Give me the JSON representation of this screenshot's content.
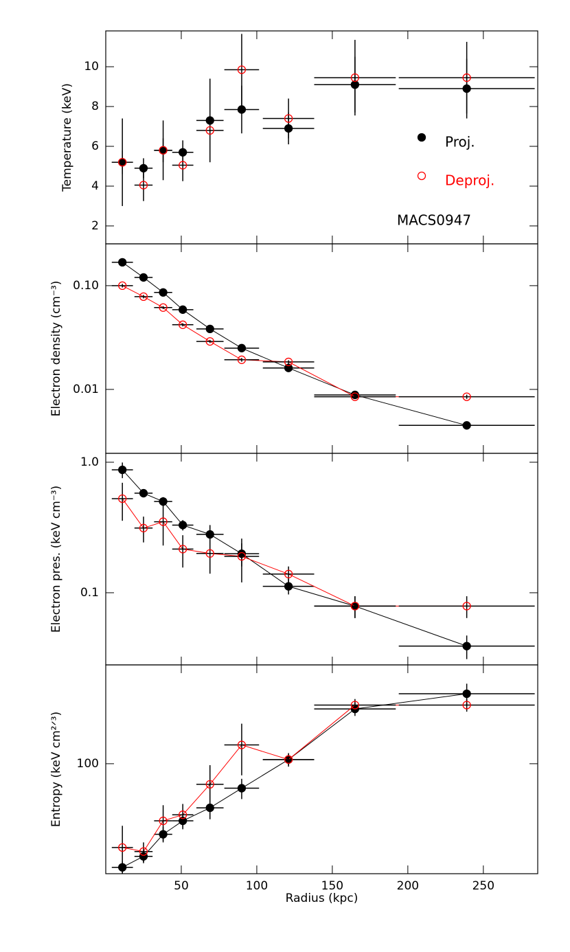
{
  "chart_data": [
    {
      "type": "scatter",
      "ylabel": "Temperature (keV)",
      "annotation": "MACS0947",
      "log": false,
      "connect": false,
      "x": [
        11,
        25,
        38,
        51,
        69,
        90,
        121,
        165,
        239
      ],
      "xerr": [
        7,
        6,
        6,
        7,
        9,
        11.5,
        17,
        27,
        45
      ],
      "xlim": [
        0,
        286
      ],
      "xticks": [
        50,
        100,
        150,
        200,
        250
      ],
      "ylim": [
        1.1,
        11.8
      ],
      "yticks": [
        2,
        4,
        6,
        8,
        10
      ],
      "series": [
        {
          "name": "Proj.",
          "color": "#000000",
          "marker": "filled",
          "values": [
            5.2,
            4.9,
            5.8,
            5.7,
            7.3,
            7.85,
            6.9,
            9.1,
            8.9
          ],
          "errors": [
            0.6,
            0.5,
            0.6,
            0.6,
            2.1,
            1.2,
            0.8,
            1.4,
            1.5
          ]
        },
        {
          "name": "Deproj.",
          "color": "#ff0000",
          "marker": "open",
          "values": [
            5.2,
            4.05,
            5.8,
            5.05,
            6.8,
            9.85,
            7.4,
            9.45,
            9.45
          ],
          "errors": [
            2.2,
            0.8,
            1.5,
            0.8,
            1.4,
            1.8,
            1.0,
            1.9,
            1.8
          ]
        }
      ]
    },
    {
      "type": "scatter",
      "ylabel": "Electron density (cm⁻³)",
      "log": true,
      "connect": true,
      "x": [
        11,
        25,
        38,
        51,
        69,
        90,
        121,
        165,
        239
      ],
      "xerr": [
        7,
        6,
        6,
        7,
        9,
        11.5,
        17,
        27,
        45
      ],
      "xlim": [
        0,
        286
      ],
      "xticks": [
        50,
        100,
        150,
        200,
        250
      ],
      "ylim": [
        0.00242,
        0.253
      ],
      "yticks": [
        {
          "value": 0.1,
          "label": "0.10"
        },
        0.01
      ],
      "series": [
        {
          "color": "#000000",
          "marker": "filled",
          "values": [
            0.168,
            0.12,
            0.086,
            0.0587,
            0.0383,
            0.025,
            0.0161,
            0.00885,
            0.0045
          ],
          "errors": [
            0.005,
            0.004,
            0.003,
            0.002,
            0.0015,
            0.001,
            0.0007,
            0.0004,
            0.0003
          ]
        },
        {
          "color": "#ff0000",
          "marker": "open",
          "values": [
            0.1,
            0.0784,
            0.0615,
            0.042,
            0.029,
            0.0193,
            0.0184,
            0.0085,
            0.0085
          ],
          "errors": [
            0.004,
            0.003,
            0.002,
            0.0015,
            0.001,
            0.0008,
            0.0007,
            0.0004,
            0.0004
          ]
        }
      ]
    },
    {
      "type": "scatter",
      "ylabel": "Electron pres. (keV cm⁻³)",
      "log": true,
      "connect": true,
      "x": [
        11,
        25,
        38,
        51,
        69,
        90,
        121,
        165,
        239
      ],
      "xerr": [
        7,
        6,
        6,
        7,
        9,
        11.5,
        17,
        27,
        45
      ],
      "xlim": [
        0,
        286
      ],
      "xticks": [
        50,
        100,
        150,
        200,
        250
      ],
      "ylim": [
        0.028,
        1.17
      ],
      "yticks": [
        {
          "value": 1,
          "label": "1.0"
        },
        0.1
      ],
      "series": [
        {
          "color": "#000000",
          "marker": "filled",
          "values": [
            0.875,
            0.579,
            0.5,
            0.33,
            0.28,
            0.199,
            0.112,
            0.079,
            0.039
          ],
          "errors": [
            0.12,
            0.04,
            0.04,
            0.03,
            0.05,
            0.04,
            0.015,
            0.015,
            0.008
          ]
        },
        {
          "color": "#ff0000",
          "marker": "open",
          "values": [
            0.526,
            0.313,
            0.35,
            0.216,
            0.2,
            0.19,
            0.139,
            0.079,
            0.079
          ],
          "errors": [
            0.17,
            0.07,
            0.12,
            0.06,
            0.06,
            0.07,
            0.02,
            0.015,
            0.015
          ]
        }
      ]
    },
    {
      "type": "scatter",
      "ylabel": "Entropy (keV cm²ᐟ³)",
      "xlabel": "Radius (kpc)",
      "log": true,
      "connect": true,
      "x": [
        11,
        25,
        38,
        51,
        69,
        90,
        121,
        165,
        239
      ],
      "xerr": [
        7,
        6,
        6,
        7,
        9,
        11.5,
        17,
        27,
        45
      ],
      "xlim": [
        0,
        286
      ],
      "xticks": [
        50,
        100,
        150,
        200,
        250
      ],
      "ylim": [
        21.5,
        398
      ],
      "yticks": [
        100
      ],
      "series": [
        {
          "color": "#000000",
          "marker": "filled",
          "values": [
            23.5,
            27.4,
            37.3,
            45,
            54,
            71,
            106,
            215,
            266
          ],
          "errors": [
            2,
            2.5,
            4,
            5,
            8,
            10,
            8,
            20,
            40
          ]
        },
        {
          "color": "#ff0000",
          "marker": "open",
          "values": [
            31,
            29.3,
            45,
            49,
            75,
            130,
            106,
            227,
            227
          ],
          "errors": [
            11,
            4,
            11,
            8,
            23,
            45,
            10,
            20,
            20
          ]
        }
      ]
    }
  ]
}
